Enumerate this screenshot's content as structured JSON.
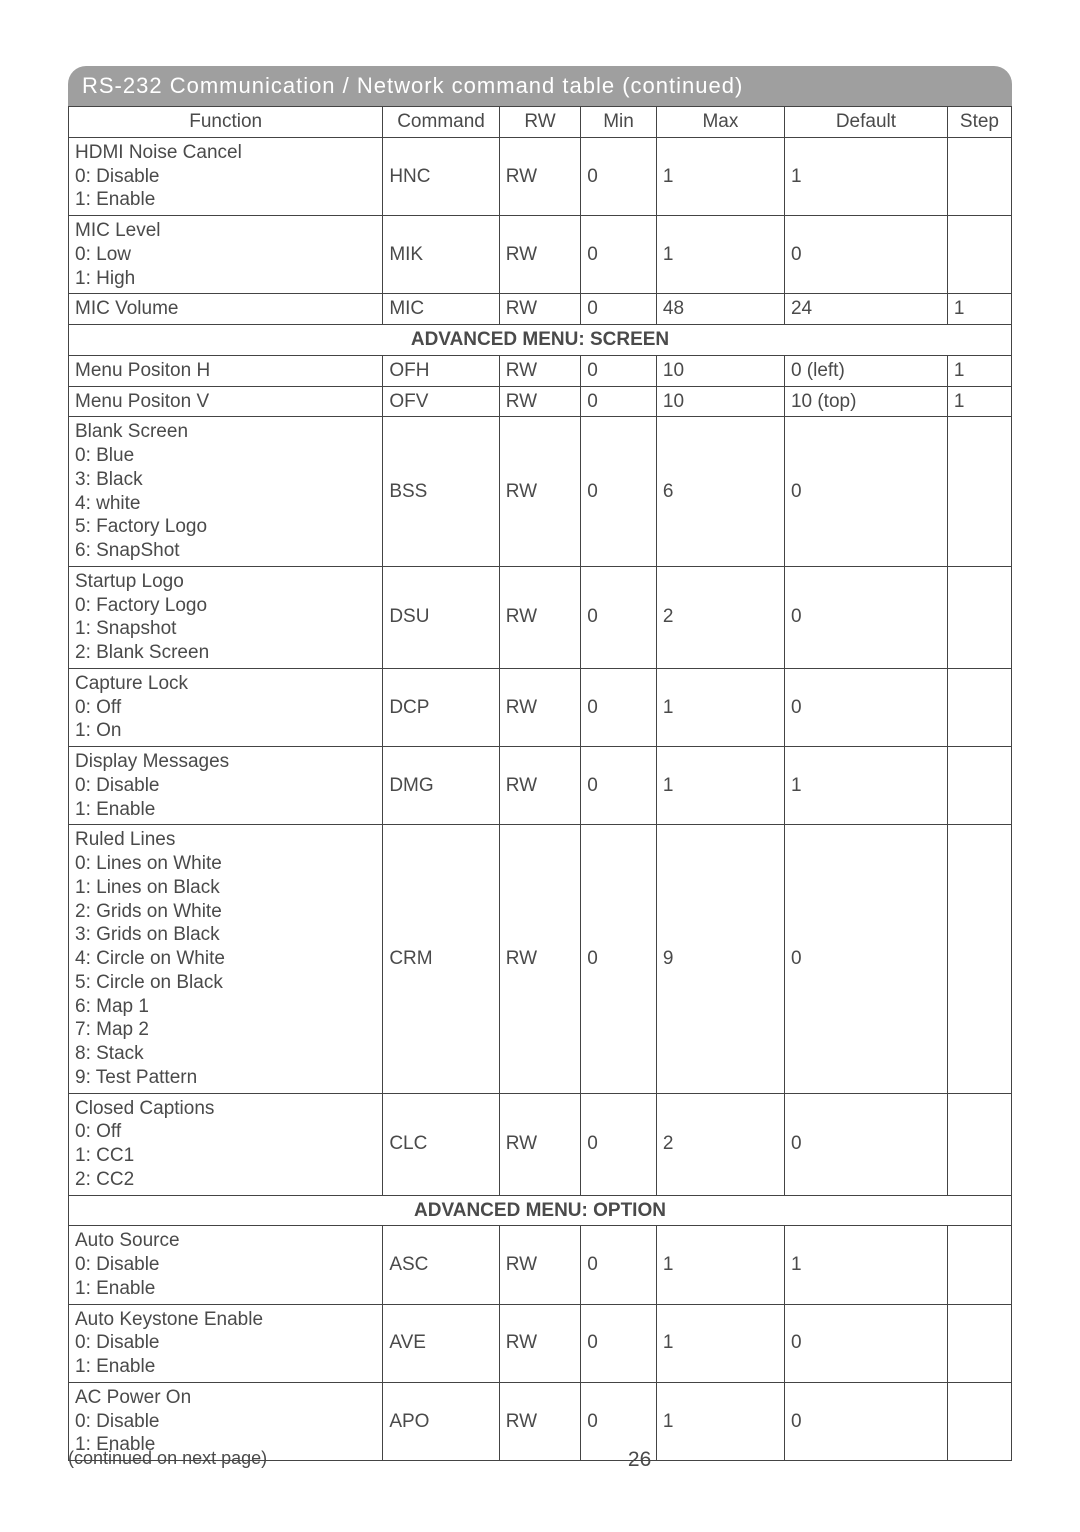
{
  "banner_title": "RS-232 Communication / Network command table (continued)",
  "columns": [
    "Function",
    "Command",
    "RW",
    "Min",
    "Max",
    "Default",
    "Step"
  ],
  "rows": [
    {
      "type": "data",
      "function": "HDMI Noise Cancel\n0: Disable\n1: Enable",
      "command": "HNC",
      "rw": "RW",
      "min": "0",
      "max": "1",
      "default": "1",
      "step": ""
    },
    {
      "type": "data",
      "function": "MIC Level\n0: Low\n1: High",
      "command": "MIK",
      "rw": "RW",
      "min": "0",
      "max": "1",
      "default": "0",
      "step": ""
    },
    {
      "type": "data",
      "function": "MIC Volume",
      "command": "MIC",
      "rw": "RW",
      "min": "0",
      "max": "48",
      "default": "24",
      "step": "1"
    },
    {
      "type": "section",
      "label": "ADVANCED MENU: SCREEN"
    },
    {
      "type": "data",
      "function": "Menu Positon H",
      "command": "OFH",
      "rw": "RW",
      "min": "0",
      "max": "10",
      "default": "0 (left)",
      "step": "1"
    },
    {
      "type": "data",
      "function": "Menu Positon V",
      "command": "OFV",
      "rw": "RW",
      "min": "0",
      "max": "10",
      "default": "10 (top)",
      "step": "1"
    },
    {
      "type": "data",
      "function": "Blank Screen\n0: Blue\n3: Black\n4: white\n5: Factory Logo\n6: SnapShot",
      "command": "BSS",
      "rw": "RW",
      "min": "0",
      "max": "6",
      "default": "0",
      "step": ""
    },
    {
      "type": "data",
      "function": "Startup Logo\n0: Factory Logo\n1: Snapshot\n2: Blank Screen",
      "command": "DSU",
      "rw": "RW",
      "min": "0",
      "max": "2",
      "default": "0",
      "step": ""
    },
    {
      "type": "data",
      "function": "Capture Lock\n0: Off\n1: On",
      "command": "DCP",
      "rw": "RW",
      "min": "0",
      "max": "1",
      "default": "0",
      "step": ""
    },
    {
      "type": "data",
      "function": "Display Messages\n0: Disable\n1: Enable",
      "command": "DMG",
      "rw": "RW",
      "min": "0",
      "max": "1",
      "default": "1",
      "step": ""
    },
    {
      "type": "data",
      "function": "Ruled Lines\n0: Lines on White\n1: Lines on Black\n2: Grids on White\n3: Grids on Black\n4: Circle on White\n5: Circle on Black\n6: Map 1\n7: Map 2\n8: Stack\n9: Test Pattern",
      "command": "CRM",
      "rw": "RW",
      "min": "0",
      "max": "9",
      "default": "0",
      "step": ""
    },
    {
      "type": "data",
      "function": "Closed Captions\n0: Off\n1: CC1\n2: CC2",
      "command": "CLC",
      "rw": "RW",
      "min": "0",
      "max": "2",
      "default": "0",
      "step": ""
    },
    {
      "type": "section",
      "label": "ADVANCED MENU: OPTION"
    },
    {
      "type": "data",
      "function": "Auto Source\n0: Disable\n1: Enable",
      "command": "ASC",
      "rw": "RW",
      "min": "0",
      "max": "1",
      "default": "1",
      "step": ""
    },
    {
      "type": "data",
      "function": "Auto Keystone Enable\n0: Disable\n1: Enable",
      "command": "AVE",
      "rw": "RW",
      "min": "0",
      "max": "1",
      "default": "0",
      "step": ""
    },
    {
      "type": "data",
      "function": "AC Power On\n0: Disable\n1: Enable",
      "command": "APO",
      "rw": "RW",
      "min": "0",
      "max": "1",
      "default": "0",
      "step": ""
    }
  ],
  "footer_continued": "(continued on next page)",
  "page_number": "26",
  "colors": {
    "banner_bg": "#9f9f9f",
    "banner_text": "#ffffff",
    "table_border": "#444444",
    "body_text": "#4a4a4a"
  },
  "typography": {
    "banner_fontsize": 22,
    "cell_fontsize": 19,
    "footer_fontsize": 18
  }
}
